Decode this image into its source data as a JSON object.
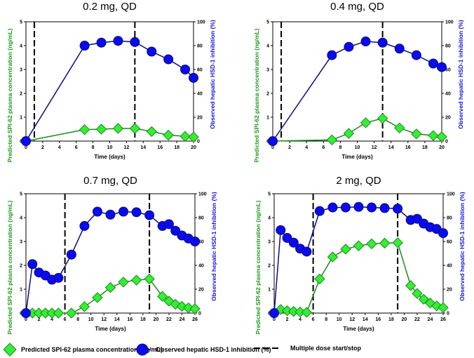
{
  "colors": {
    "green": "#33ee33",
    "green_line": "#1c8a1c",
    "blue": "#0a0aee",
    "blue_line": "#0a0a80",
    "dash": "#000000",
    "ylabel_green": "#1a9a1a",
    "ylabel_blue": "#1010e0"
  },
  "axis_labels": {
    "x": "Time (days)",
    "y_left": "Predicted SPI-62 plasma concentration (ng/mL)",
    "y_right": "Observed hepatic HSD-1 inhibition (%)"
  },
  "legend": {
    "green": "Predicted SPI-62 plasma concentration (ng/mL)",
    "blue": "Observed hepatic HSD-1 inhibition (%)",
    "dash": "Multiple dose start/stop"
  },
  "chart_data": [
    {
      "type": "line",
      "title": "0.2 mg, QD",
      "xlim": [
        0,
        20
      ],
      "xticks": [
        0,
        2,
        4,
        6,
        8,
        10,
        12,
        14,
        16,
        18,
        20
      ],
      "ylim_left": [
        0,
        5
      ],
      "ylim_right": [
        0,
        100
      ],
      "dose_lines": [
        1,
        13
      ],
      "series": [
        {
          "name": "Predicted SPI-62 plasma concentration (ng/mL)",
          "axis": "left",
          "x": [
            0,
            7,
            9,
            11,
            13,
            15,
            17,
            19,
            20
          ],
          "y": [
            0,
            0.48,
            0.5,
            0.53,
            0.53,
            0.4,
            0.25,
            0.2,
            0.17
          ]
        },
        {
          "name": "Observed hepatic HSD-1 inhibition (%)",
          "axis": "right",
          "x": [
            0,
            7,
            9,
            11,
            13,
            15,
            17,
            19,
            20
          ],
          "y": [
            0,
            80,
            82.5,
            84,
            83,
            75,
            68.5,
            60,
            53
          ]
        }
      ]
    },
    {
      "type": "line",
      "title": "0.4 mg, QD",
      "xlim": [
        0,
        20
      ],
      "xticks": [
        0,
        2,
        4,
        6,
        8,
        10,
        12,
        14,
        16,
        18,
        20
      ],
      "ylim_left": [
        0,
        5
      ],
      "ylim_right": [
        0,
        100
      ],
      "dose_lines": [
        1,
        13
      ],
      "series": [
        {
          "name": "Predicted SPI-62 plasma concentration (ng/mL)",
          "axis": "left",
          "x": [
            0,
            7,
            9,
            11,
            13,
            15,
            17,
            19,
            20
          ],
          "y": [
            0,
            0.05,
            0.32,
            0.77,
            0.95,
            0.55,
            0.3,
            0.23,
            0.18
          ]
        },
        {
          "name": "Observed hepatic HSD-1 inhibition (%)",
          "axis": "right",
          "x": [
            0,
            7,
            9,
            11,
            13,
            15,
            17,
            19,
            20
          ],
          "y": [
            0,
            72,
            79,
            83.5,
            82.5,
            77.5,
            72,
            65,
            62
          ]
        }
      ]
    },
    {
      "type": "line",
      "title": "0.7 mg, QD",
      "xlim": [
        0,
        26
      ],
      "xticks": [
        0,
        2,
        4,
        6,
        8,
        10,
        12,
        14,
        16,
        18,
        20,
        22,
        24,
        26
      ],
      "ylim_left": [
        0,
        5
      ],
      "ylim_right": [
        0,
        100
      ],
      "dose_lines": [
        6,
        19
      ],
      "series": [
        {
          "name": "Predicted SPI-62 plasma concentration (ng/mL)",
          "axis": "left",
          "x": [
            0,
            1,
            2,
            3,
            4,
            5,
            7,
            9,
            11,
            13,
            15,
            17,
            19,
            21,
            22,
            23,
            24,
            25,
            26
          ],
          "y": [
            0,
            0,
            0,
            0,
            0,
            0,
            0,
            0.27,
            0.65,
            1.07,
            1.3,
            1.38,
            1.43,
            0.7,
            0.5,
            0.37,
            0.28,
            0.22,
            0.18
          ]
        },
        {
          "name": "Observed hepatic HSD-1 inhibition (%)",
          "axis": "right",
          "x": [
            0,
            1,
            2,
            3,
            4,
            5,
            7,
            9,
            11,
            13,
            15,
            17,
            19,
            21,
            22,
            23,
            24,
            25,
            26
          ],
          "y": [
            0,
            41,
            34,
            31.5,
            28,
            29.5,
            49,
            73,
            85,
            82.5,
            85,
            84.5,
            82,
            73,
            74.5,
            69,
            65,
            62.5,
            60
          ]
        }
      ]
    },
    {
      "type": "line",
      "title": "2 mg, QD",
      "xlim": [
        0,
        26
      ],
      "xticks": [
        0,
        2,
        4,
        6,
        8,
        10,
        12,
        14,
        16,
        18,
        20,
        22,
        24,
        26
      ],
      "ylim_left": [
        0,
        5
      ],
      "ylim_right": [
        0,
        100
      ],
      "dose_lines": [
        6,
        19
      ],
      "series": [
        {
          "name": "Predicted SPI-62 plasma concentration (ng/mL)",
          "axis": "left",
          "x": [
            0,
            1,
            2,
            3,
            4,
            5,
            7,
            9,
            11,
            13,
            15,
            17,
            19,
            21,
            22,
            23,
            24,
            25,
            26
          ],
          "y": [
            0,
            0.15,
            0.1,
            0.07,
            0.05,
            0.03,
            1.43,
            2.35,
            2.68,
            2.82,
            2.9,
            2.93,
            2.95,
            1.15,
            0.82,
            0.58,
            0.42,
            0.3,
            0.23
          ]
        },
        {
          "name": "Observed hepatic HSD-1 inhibition (%)",
          "axis": "right",
          "x": [
            0,
            1,
            2,
            3,
            4,
            5,
            7,
            9,
            11,
            13,
            15,
            17,
            19,
            21,
            22,
            23,
            24,
            25,
            26
          ],
          "y": [
            0,
            69.5,
            63,
            59,
            54,
            51.5,
            85.5,
            88.5,
            88.5,
            89,
            88.5,
            88,
            87.5,
            78,
            79,
            75,
            72,
            70.5,
            67
          ]
        }
      ]
    }
  ]
}
